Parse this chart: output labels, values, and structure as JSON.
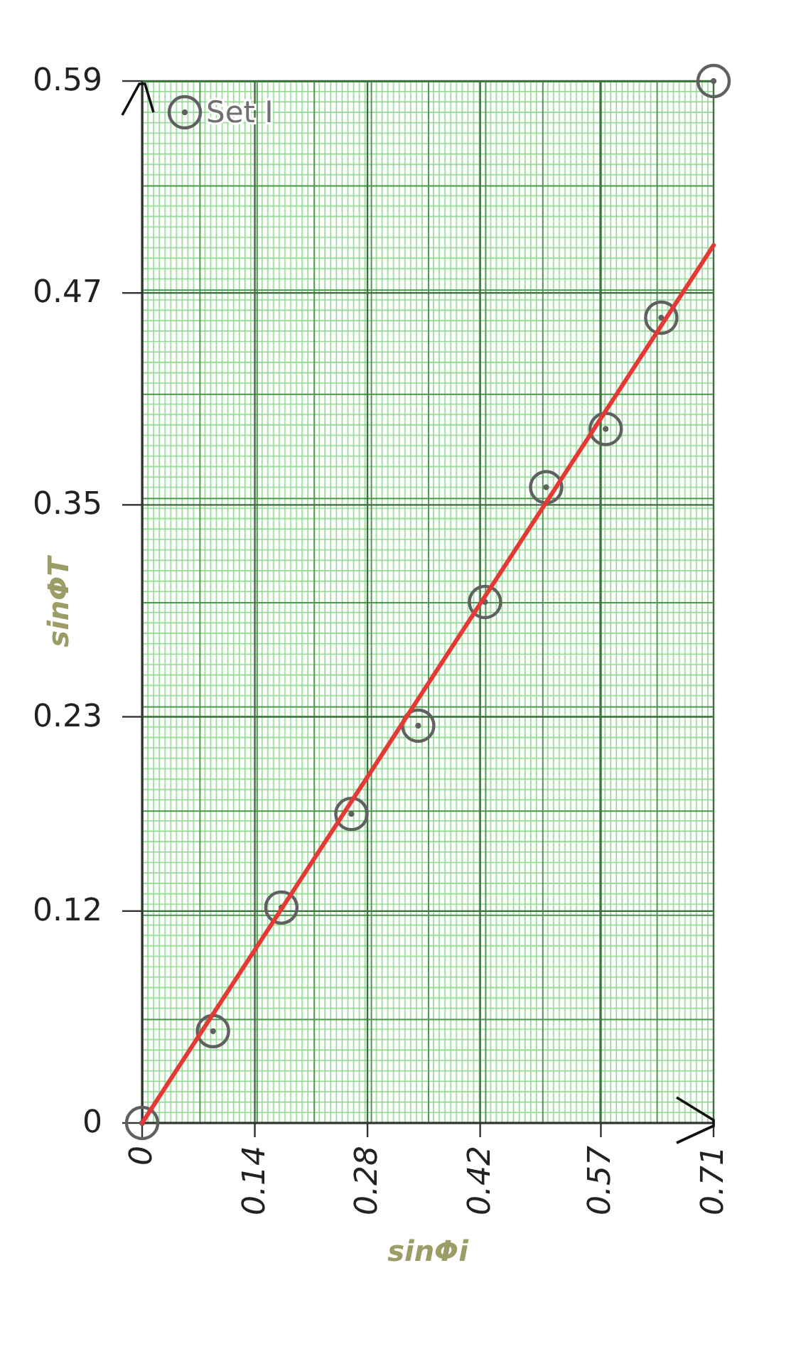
{
  "chart_data": {
    "type": "scatter",
    "xlabel": "sinΦi",
    "ylabel": "sinΦT",
    "xlim": [
      0,
      0.71
    ],
    "ylim": [
      0,
      0.59
    ],
    "xticks": [
      0,
      0.14,
      0.28,
      0.42,
      0.57,
      0.71
    ],
    "yticks": [
      0,
      0.12,
      0.23,
      0.35,
      0.47,
      0.59
    ],
    "grid": true,
    "legend": "top left",
    "series": [
      {
        "name": "Set I",
        "marker": "circle",
        "color": "#606060",
        "x": [
          0,
          0.088,
          0.173,
          0.26,
          0.343,
          0.426,
          0.502,
          0.576,
          0.645,
          0.71
        ],
        "values": [
          0,
          0.052,
          0.122,
          0.175,
          0.225,
          0.295,
          0.36,
          0.393,
          0.456,
          0.59
        ]
      },
      {
        "type": "line",
        "color": "#e53935",
        "x": [
          0,
          0.71
        ],
        "values": [
          0,
          0.497
        ],
        "line_style": "solid"
      }
    ]
  }
}
